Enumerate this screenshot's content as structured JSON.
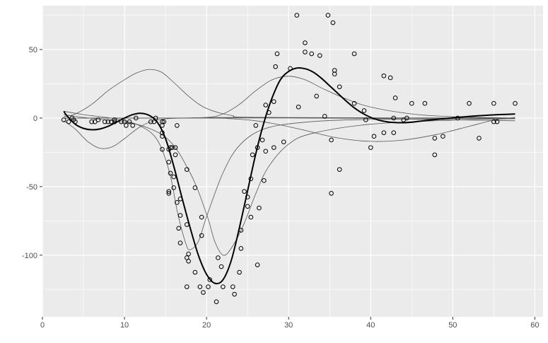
{
  "chart_data": {
    "type": "scatter",
    "title": "",
    "xlabel": "",
    "ylabel": "",
    "xlim": [
      0,
      61
    ],
    "ylim": [
      -145,
      82
    ],
    "x_ticks": [
      0,
      10,
      20,
      30,
      40,
      50,
      60
    ],
    "x_tick_labels": [
      "0",
      "10",
      "20",
      "30",
      "40",
      "50",
      "60"
    ],
    "y_ticks": [
      -100,
      -50,
      0,
      50
    ],
    "y_tick_labels": [
      "-100",
      "-50",
      "0",
      "50"
    ],
    "grid": true,
    "background": "#ebebeb",
    "grid_color": "#ffffff",
    "point_color": "#000000",
    "points": [
      [
        2.6,
        -1.3
      ],
      [
        3.2,
        -2.7
      ],
      [
        3.6,
        0
      ],
      [
        3.8,
        -1.3
      ],
      [
        4.0,
        -2.7
      ],
      [
        6.0,
        -2.7
      ],
      [
        6.4,
        -2.7
      ],
      [
        6.8,
        -1.3
      ],
      [
        7.6,
        -2.7
      ],
      [
        8.0,
        -2.7
      ],
      [
        8.4,
        -2.7
      ],
      [
        8.8,
        -1.3
      ],
      [
        8.8,
        -2.7
      ],
      [
        9.6,
        -2.7
      ],
      [
        10.0,
        -2.7
      ],
      [
        10.2,
        -5.4
      ],
      [
        10.6,
        -2.7
      ],
      [
        11.0,
        -5.4
      ],
      [
        11.4,
        0
      ],
      [
        13.2,
        -2.7
      ],
      [
        13.6,
        -2.7
      ],
      [
        13.8,
        0
      ],
      [
        14.6,
        -13.3
      ],
      [
        14.6,
        -2.7
      ],
      [
        14.6,
        -22.8
      ],
      [
        14.6,
        -5.4
      ],
      [
        14.6,
        -10.7
      ],
      [
        14.8,
        -2.7
      ],
      [
        15.4,
        -22.8
      ],
      [
        15.4,
        -32.1
      ],
      [
        15.4,
        -53.5
      ],
      [
        15.4,
        -54.9
      ],
      [
        15.6,
        -40.2
      ],
      [
        15.6,
        -21.5
      ],
      [
        15.8,
        -21.5
      ],
      [
        16.0,
        -50.8
      ],
      [
        16.0,
        -42.9
      ],
      [
        16.2,
        -26.8
      ],
      [
        16.2,
        -21.5
      ],
      [
        16.4,
        -61.6
      ],
      [
        16.4,
        -5.4
      ],
      [
        16.6,
        -80.4
      ],
      [
        16.8,
        -59.0
      ],
      [
        16.8,
        -71.0
      ],
      [
        16.8,
        -91.1
      ],
      [
        17.6,
        -77.7
      ],
      [
        17.6,
        -37.5
      ],
      [
        17.6,
        -123.1
      ],
      [
        17.6,
        -101.9
      ],
      [
        17.8,
        -99.1
      ],
      [
        17.8,
        -104.4
      ],
      [
        18.6,
        -112.5
      ],
      [
        18.6,
        -50.8
      ],
      [
        19.2,
        -123.1
      ],
      [
        19.4,
        -85.7
      ],
      [
        19.4,
        -72.3
      ],
      [
        19.6,
        -127.2
      ],
      [
        20.2,
        -123.1
      ],
      [
        20.4,
        -117.9
      ],
      [
        21.2,
        -134.0
      ],
      [
        21.4,
        -101.9
      ],
      [
        21.8,
        -108.4
      ],
      [
        22.0,
        -123.1
      ],
      [
        23.2,
        -123.1
      ],
      [
        23.4,
        -128.5
      ],
      [
        24.0,
        -112.5
      ],
      [
        24.2,
        -95.1
      ],
      [
        24.2,
        -81.8
      ],
      [
        24.6,
        -53.5
      ],
      [
        25.0,
        -64.4
      ],
      [
        25.0,
        -57.6
      ],
      [
        25.4,
        -72.3
      ],
      [
        25.4,
        -44.3
      ],
      [
        25.6,
        -26.8
      ],
      [
        26.0,
        -5.4
      ],
      [
        26.2,
        -107.1
      ],
      [
        26.2,
        -21.5
      ],
      [
        26.4,
        -65.6
      ],
      [
        26.8,
        -16.0
      ],
      [
        27.0,
        -45.6
      ],
      [
        27.2,
        -24.2
      ],
      [
        27.2,
        9.5
      ],
      [
        27.6,
        4.0
      ],
      [
        28.2,
        12.0
      ],
      [
        28.2,
        -21.5
      ],
      [
        28.4,
        37.5
      ],
      [
        28.6,
        46.9
      ],
      [
        29.4,
        -17.4
      ],
      [
        30.2,
        36.2
      ],
      [
        31.0,
        75.0
      ],
      [
        31.2,
        8.1
      ],
      [
        32.0,
        54.9
      ],
      [
        32.0,
        48.2
      ],
      [
        32.8,
        46.9
      ],
      [
        33.4,
        16.0
      ],
      [
        33.8,
        45.6
      ],
      [
        34.4,
        1.3
      ],
      [
        34.8,
        75.0
      ],
      [
        35.2,
        -16.0
      ],
      [
        35.2,
        -54.9
      ],
      [
        35.4,
        69.6
      ],
      [
        35.6,
        34.8
      ],
      [
        35.6,
        32.1
      ],
      [
        36.2,
        22.8
      ],
      [
        36.2,
        -37.5
      ],
      [
        38.0,
        46.9
      ],
      [
        38.0,
        10.7
      ],
      [
        39.2,
        5.4
      ],
      [
        39.4,
        -1.3
      ],
      [
        40.0,
        -21.5
      ],
      [
        40.4,
        -13.3
      ],
      [
        41.6,
        30.8
      ],
      [
        41.6,
        -10.7
      ],
      [
        42.4,
        29.4
      ],
      [
        42.8,
        0
      ],
      [
        42.8,
        -10.7
      ],
      [
        43.0,
        14.7
      ],
      [
        44.0,
        -1.3
      ],
      [
        44.4,
        0
      ],
      [
        45.0,
        10.7
      ],
      [
        46.6,
        10.7
      ],
      [
        47.8,
        -14.7
      ],
      [
        47.8,
        -26.8
      ],
      [
        48.8,
        -13.3
      ],
      [
        50.6,
        0
      ],
      [
        52.0,
        10.7
      ],
      [
        53.2,
        -14.7
      ],
      [
        55.0,
        10.7
      ],
      [
        55.0,
        -2.7
      ],
      [
        55.4,
        -2.7
      ],
      [
        57.6,
        10.7
      ]
    ],
    "fit_curve": [
      [
        2.6,
        5.0
      ],
      [
        3.0,
        1.5
      ],
      [
        4.0,
        -4.5
      ],
      [
        5.0,
        -7.5
      ],
      [
        6.0,
        -8.5
      ],
      [
        7.0,
        -8.0
      ],
      [
        8.0,
        -6.0
      ],
      [
        9.0,
        -3.0
      ],
      [
        10.0,
        0
      ],
      [
        11.0,
        2.5
      ],
      [
        12.0,
        3.5
      ],
      [
        13.0,
        2.0
      ],
      [
        14.0,
        -3.0
      ],
      [
        15.0,
        -15.0
      ],
      [
        16.0,
        -35.0
      ],
      [
        17.0,
        -58.0
      ],
      [
        18.0,
        -80.0
      ],
      [
        19.0,
        -100.0
      ],
      [
        20.0,
        -114.0
      ],
      [
        21.0,
        -120.5
      ],
      [
        22.0,
        -118.0
      ],
      [
        23.0,
        -104.0
      ],
      [
        24.0,
        -80.0
      ],
      [
        25.0,
        -53.0
      ],
      [
        26.0,
        -26.0
      ],
      [
        27.0,
        -3.0
      ],
      [
        28.0,
        15.0
      ],
      [
        29.0,
        28.0
      ],
      [
        30.0,
        34.0
      ],
      [
        31.0,
        36.5
      ],
      [
        32.0,
        36.0
      ],
      [
        33.0,
        33.5
      ],
      [
        34.0,
        29.0
      ],
      [
        35.0,
        23.5
      ],
      [
        36.0,
        18.0
      ],
      [
        37.0,
        12.5
      ],
      [
        38.0,
        7.5
      ],
      [
        39.0,
        3.5
      ],
      [
        40.0,
        0.5
      ],
      [
        41.0,
        -1.5
      ],
      [
        42.0,
        -2.7
      ],
      [
        43.0,
        -3.3
      ],
      [
        44.0,
        -3.4
      ],
      [
        45.0,
        -3.0
      ],
      [
        46.0,
        -2.3
      ],
      [
        48.0,
        -1.0
      ],
      [
        50.0,
        0.2
      ],
      [
        52.0,
        1.2
      ],
      [
        54.0,
        2.0
      ],
      [
        56.0,
        2.6
      ],
      [
        57.6,
        3.0
      ]
    ],
    "basis_curves": [
      [
        [
          2.6,
          5.0
        ],
        [
          5.0,
          2.5
        ],
        [
          10.0,
          -2.0
        ],
        [
          15.0,
          -14.0
        ],
        [
          18.0,
          -40.0
        ],
        [
          20.0,
          -70.0
        ],
        [
          21.0,
          -90.0
        ],
        [
          22.0,
          -100.0
        ],
        [
          23.0,
          -95.0
        ],
        [
          24.5,
          -78.0
        ],
        [
          26.0,
          -55.0
        ],
        [
          27.5,
          -36.0
        ],
        [
          30.0,
          -19.0
        ],
        [
          33.0,
          -11.0
        ],
        [
          40.0,
          -4.5
        ],
        [
          50.0,
          -1.5
        ],
        [
          57.6,
          -0.5
        ]
      ],
      [
        [
          2.6,
          2.5
        ],
        [
          5.0,
          0.5
        ],
        [
          10.0,
          -3.0
        ],
        [
          12.0,
          -6.0
        ],
        [
          14.0,
          -16.0
        ],
        [
          15.5,
          -40.0
        ],
        [
          16.5,
          -70.0
        ],
        [
          17.5,
          -92.0
        ],
        [
          18.0,
          -96.0
        ],
        [
          19.0,
          -90.0
        ],
        [
          20.0,
          -72.0
        ],
        [
          22.0,
          -40.0
        ],
        [
          24.0,
          -20.0
        ],
        [
          27.0,
          -8.0
        ],
        [
          32.0,
          -3.0
        ],
        [
          40.0,
          -1.0
        ],
        [
          57.6,
          -0.2
        ]
      ],
      [
        [
          2.6,
          -2.0
        ],
        [
          4.0,
          -8.0
        ],
        [
          5.5,
          -17.0
        ],
        [
          7.0,
          -22.0
        ],
        [
          8.5,
          -21.0
        ],
        [
          10.0,
          -15.0
        ],
        [
          12.0,
          -6.0
        ],
        [
          14.0,
          -1.5
        ],
        [
          17.0,
          0
        ],
        [
          25.0,
          0.5
        ],
        [
          35.0,
          0
        ],
        [
          57.6,
          0
        ]
      ],
      [
        [
          2.6,
          1.0
        ],
        [
          4.0,
          3.0
        ],
        [
          6.0,
          10.0
        ],
        [
          8.0,
          20.0
        ],
        [
          10.0,
          28.0
        ],
        [
          11.5,
          33.0
        ],
        [
          13.0,
          35.5
        ],
        [
          14.5,
          33.5
        ],
        [
          16.0,
          26.0
        ],
        [
          18.0,
          15.0
        ],
        [
          20.0,
          7.0
        ],
        [
          23.0,
          2.0
        ],
        [
          27.0,
          0.5
        ],
        [
          57.6,
          0
        ]
      ],
      [
        [
          2.6,
          0
        ],
        [
          15.0,
          0
        ],
        [
          20.0,
          0.5
        ],
        [
          22.0,
          3.0
        ],
        [
          24.0,
          10.0
        ],
        [
          26.0,
          20.0
        ],
        [
          28.0,
          28.0
        ],
        [
          30.0,
          30.5
        ],
        [
          32.0,
          28.0
        ],
        [
          34.0,
          22.0
        ],
        [
          37.0,
          14.0
        ],
        [
          40.0,
          8.0
        ],
        [
          45.0,
          3.0
        ],
        [
          50.0,
          1.0
        ],
        [
          57.6,
          0
        ]
      ],
      [
        [
          2.6,
          0
        ],
        [
          20.0,
          0
        ],
        [
          23.0,
          -0.5
        ],
        [
          26.0,
          -2.0
        ],
        [
          29.0,
          -5.0
        ],
        [
          32.0,
          -9.0
        ],
        [
          36.0,
          -14.5
        ],
        [
          40.0,
          -17.0
        ],
        [
          44.0,
          -16.0
        ],
        [
          48.0,
          -12.0
        ],
        [
          52.0,
          -6.0
        ],
        [
          55.0,
          -1.5
        ],
        [
          57.6,
          0.5
        ]
      ],
      [
        [
          2.6,
          0
        ],
        [
          30.0,
          0
        ],
        [
          40.0,
          -0.3
        ],
        [
          57.6,
          -2.0
        ]
      ]
    ]
  }
}
